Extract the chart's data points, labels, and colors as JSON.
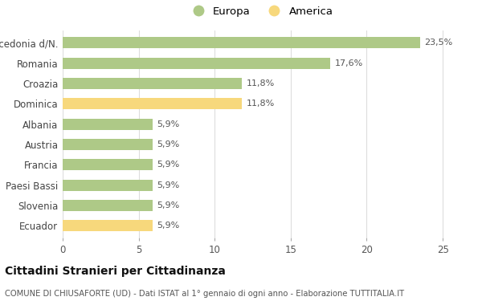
{
  "categories": [
    "Macedonia d/N.",
    "Romania",
    "Croazia",
    "Dominica",
    "Albania",
    "Austria",
    "Francia",
    "Paesi Bassi",
    "Slovenia",
    "Ecuador"
  ],
  "values": [
    23.5,
    17.6,
    11.8,
    11.8,
    5.9,
    5.9,
    5.9,
    5.9,
    5.9,
    5.9
  ],
  "labels": [
    "23,5%",
    "17,6%",
    "11,8%",
    "11,8%",
    "5,9%",
    "5,9%",
    "5,9%",
    "5,9%",
    "5,9%",
    "5,9%"
  ],
  "colors": [
    "#aec987",
    "#aec987",
    "#aec987",
    "#f7d87c",
    "#aec987",
    "#aec987",
    "#aec987",
    "#aec987",
    "#aec987",
    "#f7d87c"
  ],
  "europa_color": "#aec987",
  "america_color": "#f7d87c",
  "legend_labels": [
    "Europa",
    "America"
  ],
  "xlim": [
    0,
    26
  ],
  "xticks": [
    0,
    5,
    10,
    15,
    20,
    25
  ],
  "title1": "Cittadini Stranieri per Cittadinanza",
  "title2": "COMUNE DI CHIUSAFORTE (UD) - Dati ISTAT al 1° gennaio di ogni anno - Elaborazione TUTTITALIA.IT",
  "bg_color": "#ffffff",
  "grid_color": "#dddddd",
  "bar_height": 0.55
}
